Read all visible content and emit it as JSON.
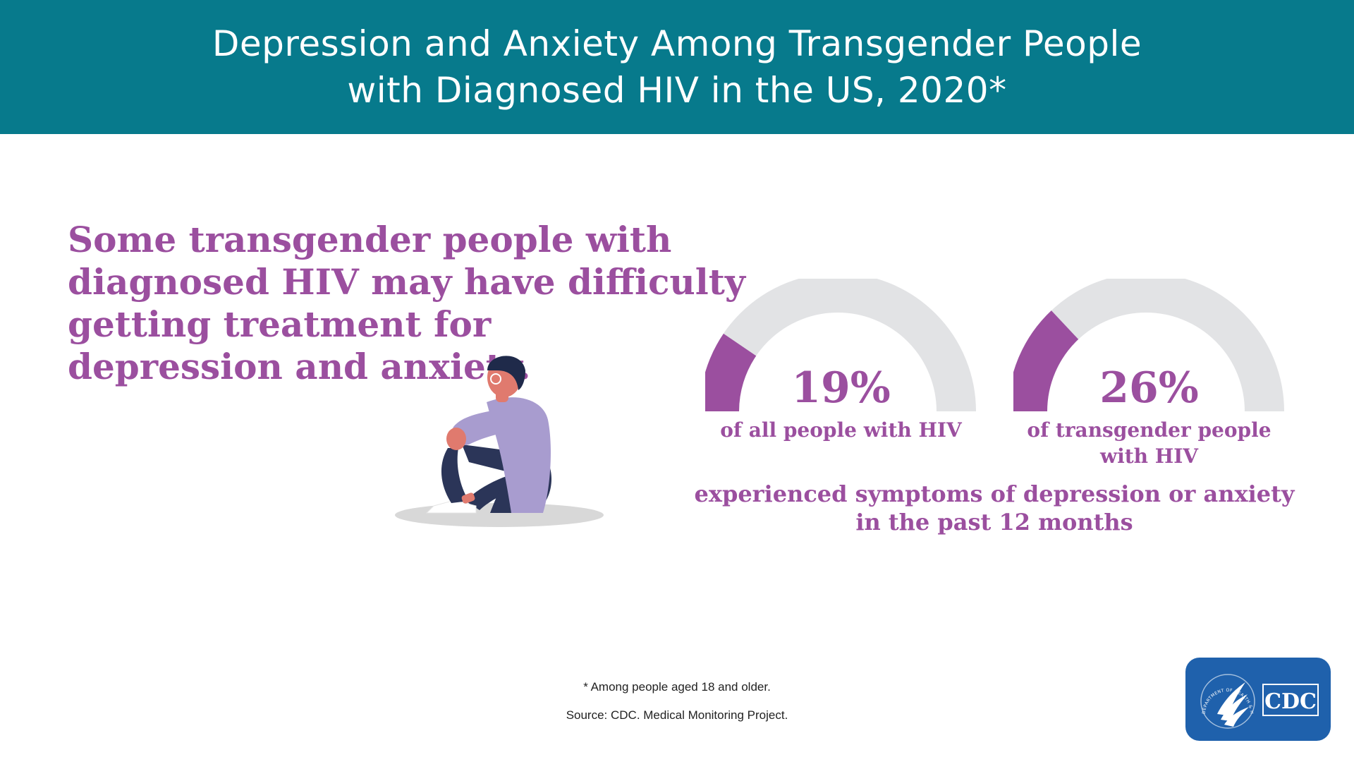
{
  "header": {
    "title_line1": "Depression and Anxiety Among Transgender People",
    "title_line2": "with Diagnosed HIV in the US, 2020*"
  },
  "headline": {
    "line1": "Some transgender people with",
    "line2": "diagnosed HIV may have difficulty",
    "line3": "getting treatment for",
    "line4": "depression and anxiety."
  },
  "chart_data": {
    "type": "gauge",
    "value_unit": "%",
    "range": [
      0,
      100
    ],
    "items": [
      {
        "value": 19,
        "label": "19%",
        "caption_lines": [
          "of all people with HIV"
        ]
      },
      {
        "value": 26,
        "label": "26%",
        "caption_lines": [
          "of transgender people",
          "with HIV"
        ]
      }
    ],
    "summary_lines": [
      "experienced symptoms of depression or anxiety",
      "in the past 12 months"
    ]
  },
  "colors": {
    "header_bg": "#077a8c",
    "accent_purple": "#9b4f9f",
    "gauge_track": "#e2e3e5",
    "logo_bg": "#1f61ac"
  },
  "footer": {
    "footnote": "* Among people aged 18 and older.",
    "source": "Source: CDC. Medical Monitoring Project."
  },
  "logo": {
    "text": "CDC",
    "seal_text": "DEPARTMENT OF HEALTH & HUMAN SERVICES USA",
    "icon": "hhs-eagle-icon"
  },
  "illustration": {
    "icon": "sitting-person-icon"
  }
}
